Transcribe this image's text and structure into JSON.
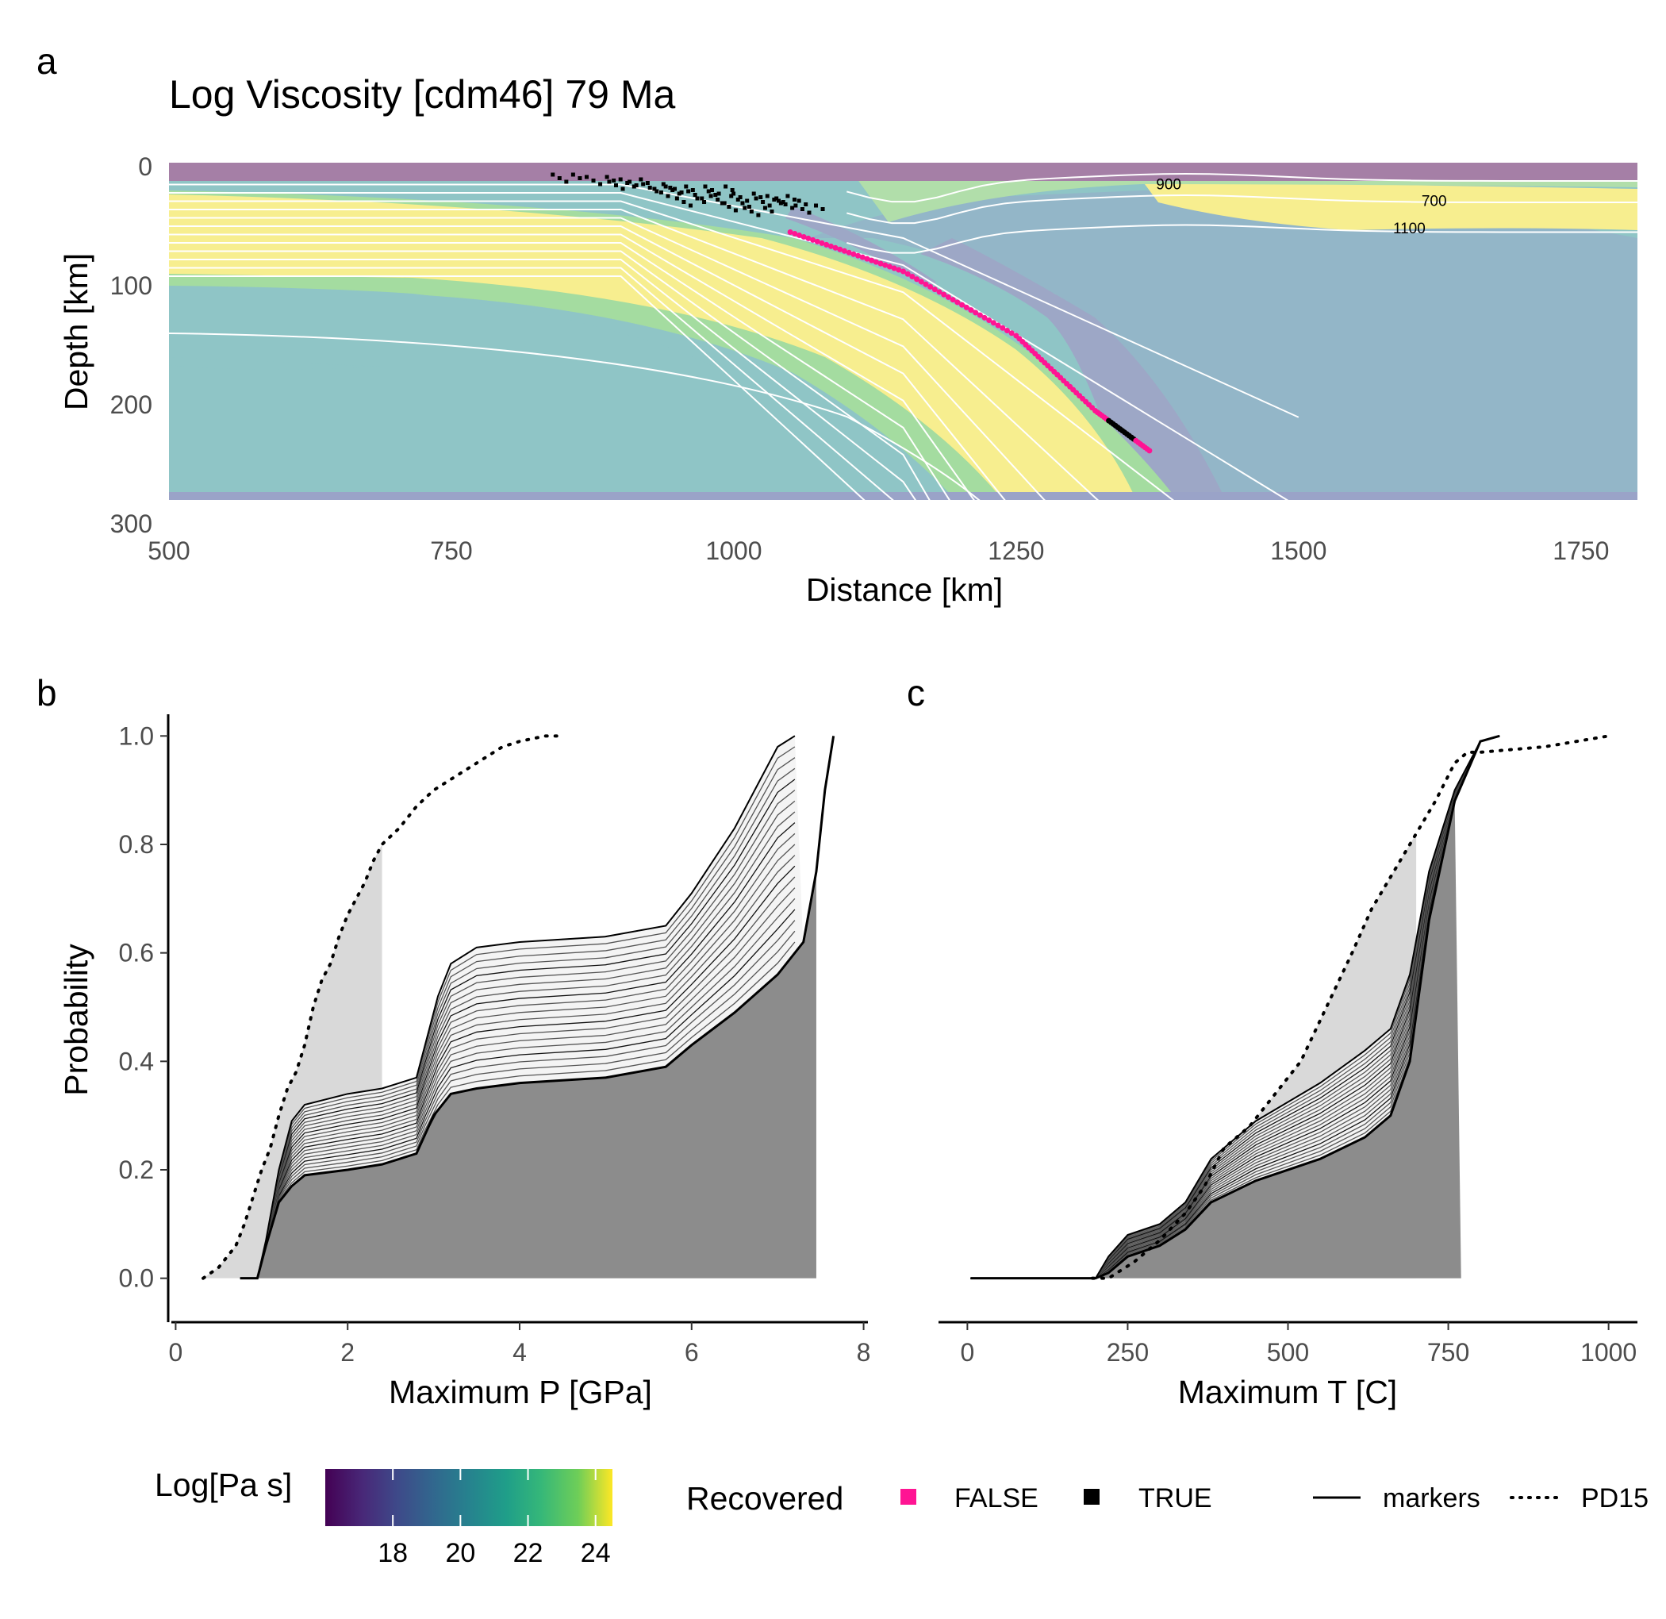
{
  "figure": {
    "panel_letters": [
      "a",
      "b",
      "c"
    ]
  },
  "chart_data": [
    {
      "type": "heatmap",
      "panel": "a",
      "title": "Log Viscosity [cdm46] 79 Ma",
      "xlabel": "Distance [km]",
      "ylabel": "Depth [km]",
      "xlim": [
        500,
        1800
      ],
      "ylim": [
        300,
        -20
      ],
      "xticks": [
        500,
        750,
        1000,
        1250,
        1500,
        1750
      ],
      "yticks": [
        0,
        100,
        200,
        300
      ],
      "colorbar": {
        "title": "Log[Pa s]",
        "ticks": [
          18,
          20,
          22,
          24
        ],
        "range": [
          16,
          24.5
        ],
        "colormap": "viridis"
      },
      "isotherm_labels": [
        {
          "text": "900",
          "x": 1385,
          "depth": 15
        },
        {
          "text": "700",
          "x": 1620,
          "depth": 29
        },
        {
          "text": "1100",
          "x": 1598,
          "depth": 52
        }
      ],
      "recovered_legend": {
        "title": "Recovered",
        "entries": [
          {
            "label": "FALSE",
            "color": "#ff1493"
          },
          {
            "label": "TRUE",
            "color": "#000000"
          }
        ]
      },
      "marker_track": [
        [
          1050,
          55
        ],
        [
          1150,
          88
        ],
        [
          1250,
          142
        ],
        [
          1320,
          205
        ],
        [
          1370,
          240
        ]
      ]
    },
    {
      "type": "line",
      "panel": "b",
      "xlabel": "Maximum P [GPa]",
      "ylabel": "Probability",
      "xlim": [
        -0.05,
        8.05
      ],
      "ylim": [
        -0.04,
        1.04
      ],
      "xticks": [
        0,
        2,
        4,
        6,
        8
      ],
      "yticks": [
        0.0,
        0.2,
        0.4,
        0.6,
        0.8,
        1.0
      ],
      "series": [
        {
          "name": "PD15",
          "style": "dotted",
          "x": [
            0.32,
            0.5,
            0.7,
            0.8,
            0.9,
            1.0,
            1.1,
            1.2,
            1.3,
            1.4,
            1.5,
            1.6,
            1.7,
            1.8,
            1.9,
            2.0,
            2.1,
            2.2,
            2.3,
            2.4,
            2.6,
            2.8,
            3.0,
            3.2,
            3.5,
            3.8,
            4.0,
            4.3,
            4.5
          ],
          "y": [
            0.0,
            0.02,
            0.06,
            0.1,
            0.15,
            0.2,
            0.24,
            0.3,
            0.35,
            0.38,
            0.43,
            0.5,
            0.55,
            0.58,
            0.63,
            0.67,
            0.7,
            0.73,
            0.77,
            0.8,
            0.83,
            0.87,
            0.9,
            0.92,
            0.95,
            0.98,
            0.99,
            1.0,
            1.0
          ]
        },
        {
          "name": "markers (upper)",
          "style": "solid",
          "x": [
            0.75,
            0.95,
            1.05,
            1.2,
            1.35,
            1.5,
            2.0,
            2.4,
            2.6,
            2.8,
            2.9,
            3.05,
            3.2,
            3.5,
            4.0,
            5.0,
            5.7,
            6.0,
            6.5,
            7.0,
            7.2
          ],
          "y": [
            0.0,
            0.0,
            0.07,
            0.2,
            0.29,
            0.32,
            0.34,
            0.35,
            0.36,
            0.37,
            0.43,
            0.52,
            0.58,
            0.61,
            0.62,
            0.63,
            0.65,
            0.71,
            0.83,
            0.98,
            1.0
          ]
        },
        {
          "name": "markers (lower)",
          "style": "solid",
          "x": [
            0.75,
            0.95,
            1.05,
            1.2,
            1.35,
            1.5,
            2.0,
            2.4,
            2.8,
            3.0,
            3.2,
            3.5,
            4.0,
            5.0,
            5.7,
            6.0,
            6.5,
            7.0,
            7.3,
            7.45,
            7.55,
            7.65
          ],
          "y": [
            0.0,
            0.0,
            0.06,
            0.14,
            0.17,
            0.19,
            0.2,
            0.21,
            0.23,
            0.3,
            0.34,
            0.35,
            0.36,
            0.37,
            0.39,
            0.43,
            0.49,
            0.56,
            0.62,
            0.75,
            0.9,
            1.0
          ]
        }
      ],
      "shading_bounds": {
        "light_until": 2.4,
        "dark_until": 7.45
      }
    },
    {
      "type": "line",
      "panel": "c",
      "xlabel": "Maximum T [C]",
      "ylabel": "",
      "xlim": [
        -45,
        1045
      ],
      "ylim": [
        -0.04,
        1.04
      ],
      "xticks": [
        0,
        250,
        500,
        750,
        1000
      ],
      "yticks": [
        0.0,
        0.2,
        0.4,
        0.6,
        0.8,
        1.0
      ],
      "series": [
        {
          "name": "PD15",
          "style": "dotted",
          "x": [
            195,
            220,
            260,
            300,
            340,
            370,
            400,
            440,
            480,
            520,
            560,
            600,
            630,
            670,
            700,
            730,
            760,
            780,
            800,
            900,
            1000
          ],
          "y": [
            0.0,
            0.0,
            0.03,
            0.07,
            0.12,
            0.17,
            0.24,
            0.28,
            0.34,
            0.4,
            0.5,
            0.6,
            0.68,
            0.76,
            0.82,
            0.88,
            0.95,
            0.97,
            0.97,
            0.98,
            1.0
          ]
        },
        {
          "name": "markers (upper)",
          "style": "solid",
          "x": [
            5,
            180,
            200,
            220,
            250,
            300,
            340,
            380,
            450,
            550,
            620,
            660,
            690,
            720,
            760,
            800,
            830
          ],
          "y": [
            0.0,
            0.0,
            0.0,
            0.04,
            0.08,
            0.1,
            0.14,
            0.22,
            0.29,
            0.36,
            0.42,
            0.46,
            0.56,
            0.75,
            0.9,
            0.99,
            1.0
          ]
        },
        {
          "name": "markers (lower)",
          "style": "solid",
          "x": [
            5,
            180,
            200,
            220,
            250,
            300,
            340,
            380,
            450,
            550,
            620,
            660,
            690,
            720,
            760,
            800,
            830
          ],
          "y": [
            0.0,
            0.0,
            0.0,
            0.01,
            0.04,
            0.06,
            0.09,
            0.14,
            0.18,
            0.22,
            0.26,
            0.3,
            0.4,
            0.66,
            0.88,
            0.99,
            1.0
          ]
        }
      ],
      "shading_bounds": {
        "light_until": 700,
        "dark_until": 770
      }
    }
  ],
  "legend": {
    "linetype_entries": [
      {
        "label": "markers",
        "style": "solid"
      },
      {
        "label": "PD15",
        "style": "dotted"
      }
    ]
  }
}
